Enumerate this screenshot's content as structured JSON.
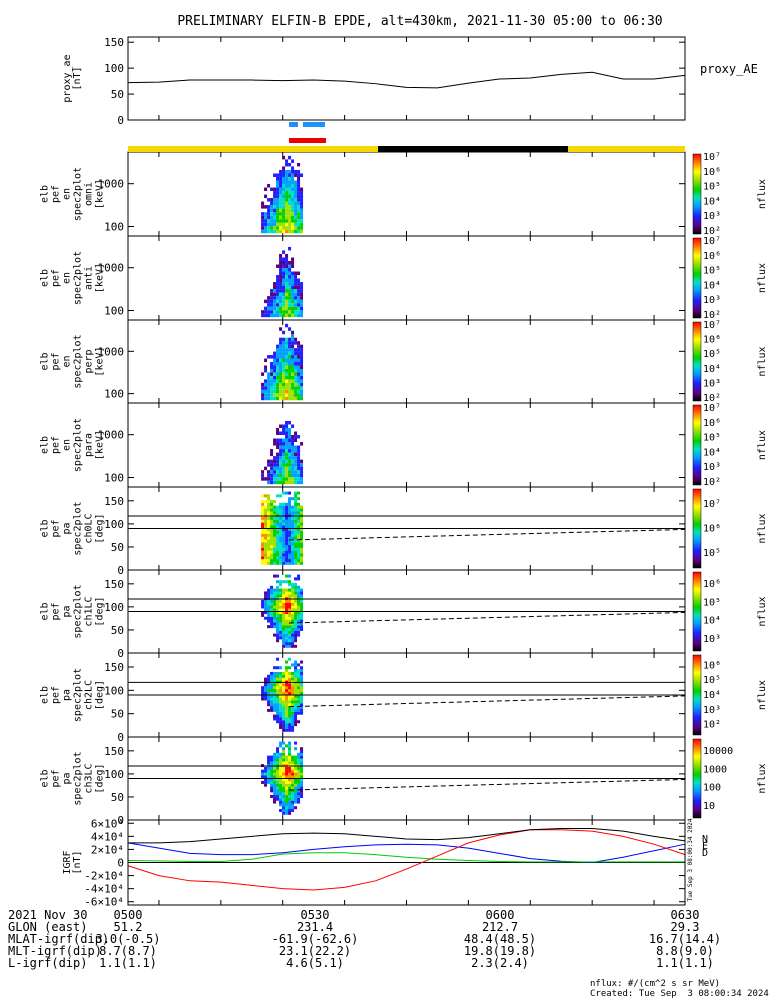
{
  "title": "PRELIMINARY ELFIN-B EPDE, alt=430km, 2021-11-30 05:00 to 06:30",
  "chart_data": [
    {
      "id": "proxy_ae",
      "type": "line",
      "ylabel": [
        "proxy_ae",
        "[nT]"
      ],
      "yticks": [
        "0",
        "50",
        "100",
        "150"
      ],
      "ylim": [
        0,
        160
      ],
      "legend": "proxy_AE",
      "x_minutes": [
        0,
        5,
        10,
        15,
        20,
        25,
        30,
        35,
        40,
        45,
        50,
        55,
        60,
        65,
        70,
        75,
        80,
        85,
        90
      ],
      "values": [
        72,
        73,
        77,
        77,
        77,
        76,
        77,
        75,
        70,
        63,
        62,
        71,
        79,
        81,
        88,
        92,
        79,
        79,
        86
      ]
    },
    {
      "id": "en_omni",
      "type": "heatmap",
      "ylabel": [
        "elb",
        "pef",
        "en",
        "spec2plot",
        "omni",
        "[keV]"
      ],
      "yticks": [
        "100",
        "1000"
      ],
      "log_y": true,
      "colorbar": {
        "ticks": [
          "10²",
          "10³",
          "10⁴",
          "10⁵",
          "10⁶",
          "10⁷"
        ],
        "label": "nflux"
      }
    },
    {
      "id": "en_anti",
      "type": "heatmap",
      "ylabel": [
        "elb",
        "pef",
        "en",
        "spec2plot",
        "anti",
        "[keV]"
      ],
      "yticks": [
        "100",
        "1000"
      ],
      "log_y": true,
      "colorbar": {
        "ticks": [
          "10²",
          "10³",
          "10⁴",
          "10⁵",
          "10⁶",
          "10⁷"
        ],
        "label": "nflux"
      }
    },
    {
      "id": "en_perp",
      "type": "heatmap",
      "ylabel": [
        "elb",
        "pef",
        "en",
        "spec2plot",
        "perp",
        "[keV]"
      ],
      "yticks": [
        "100",
        "1000"
      ],
      "log_y": true,
      "colorbar": {
        "ticks": [
          "10²",
          "10³",
          "10⁴",
          "10⁵",
          "10⁶",
          "10⁷"
        ],
        "label": "nflux"
      }
    },
    {
      "id": "en_para",
      "type": "heatmap",
      "ylabel": [
        "elb",
        "pef",
        "en",
        "spec2plot",
        "para",
        "[keV]"
      ],
      "yticks": [
        "100",
        "1000"
      ],
      "log_y": true,
      "colorbar": {
        "ticks": [
          "10²",
          "10³",
          "10⁴",
          "10⁵",
          "10⁶",
          "10⁷"
        ],
        "label": "nflux"
      }
    },
    {
      "id": "pa_ch0",
      "type": "heatmap",
      "ylabel": [
        "elb",
        "pef",
        "pa",
        "spec2plot",
        "ch0LC",
        "[deg]"
      ],
      "yticks": [
        "0",
        "50",
        "100",
        "150"
      ],
      "ylim": [
        0,
        180
      ],
      "colorbar": {
        "ticks": [
          "10⁵",
          "10⁶",
          "10⁷"
        ],
        "label": "nflux"
      }
    },
    {
      "id": "pa_ch1",
      "type": "heatmap",
      "ylabel": [
        "elb",
        "pef",
        "pa",
        "spec2plot",
        "ch1LC",
        "[deg]"
      ],
      "yticks": [
        "0",
        "50",
        "100",
        "150"
      ],
      "ylim": [
        0,
        180
      ],
      "colorbar": {
        "ticks": [
          "10³",
          "10⁴",
          "10⁵",
          "10⁶"
        ],
        "label": "nflux"
      }
    },
    {
      "id": "pa_ch2",
      "type": "heatmap",
      "ylabel": [
        "elb",
        "pef",
        "pa",
        "spec2plot",
        "ch2LC",
        "[deg]"
      ],
      "yticks": [
        "0",
        "50",
        "100",
        "150"
      ],
      "ylim": [
        0,
        180
      ],
      "colorbar": {
        "ticks": [
          "10²",
          "10³",
          "10⁴",
          "10⁵",
          "10⁶"
        ],
        "label": "nflux"
      }
    },
    {
      "id": "pa_ch3",
      "type": "heatmap",
      "ylabel": [
        "elb",
        "pef",
        "pa",
        "spec2plot",
        "ch3LC",
        "[deg]"
      ],
      "yticks": [
        "0",
        "50",
        "100",
        "150"
      ],
      "ylim": [
        0,
        180
      ],
      "colorbar": {
        "ticks": [
          "10",
          "100",
          "1000",
          "10000"
        ],
        "label": "nflux"
      }
    },
    {
      "id": "igrf",
      "type": "line",
      "ylabel": [
        "IGRF",
        "[nT]"
      ],
      "yticks": [
        "-6×10⁴",
        "-4×10⁴",
        "-2×10⁴",
        "0",
        "2×10⁴",
        "4×10⁴",
        "6×10⁴"
      ],
      "ylim": [
        -65000,
        65000
      ],
      "x_minutes": [
        0,
        5,
        10,
        15,
        20,
        25,
        30,
        35,
        40,
        45,
        50,
        55,
        60,
        65,
        70,
        75,
        80,
        85,
        90
      ],
      "series": [
        {
          "name": "N",
          "color": "#0000ff",
          "values": [
            30000,
            22000,
            14000,
            12000,
            12000,
            15000,
            20000,
            24000,
            27000,
            28000,
            27000,
            22000,
            14000,
            6000,
            2000,
            0,
            8000,
            18000,
            28000
          ]
        },
        {
          "name": "E",
          "color": "#00cc00",
          "values": [
            3000,
            2500,
            1500,
            1500,
            5000,
            13000,
            15000,
            15000,
            12000,
            8000,
            5000,
            3000,
            1500,
            1000,
            1000,
            1000,
            1000,
            1000,
            1000
          ]
        },
        {
          "name": "D",
          "color": "#ff0000",
          "values": [
            -5000,
            -20000,
            -28000,
            -30000,
            -35000,
            -40000,
            -42000,
            -38000,
            -28000,
            -10000,
            10000,
            30000,
            42000,
            50000,
            50000,
            48000,
            40000,
            28000,
            12000
          ]
        },
        {
          "name": "",
          "color": "#000000",
          "values": [
            30000,
            30000,
            32000,
            36000,
            40000,
            44000,
            45000,
            44000,
            40000,
            36000,
            35000,
            38000,
            44000,
            50000,
            52000,
            52000,
            48000,
            40000,
            33000
          ]
        }
      ]
    }
  ],
  "footer": {
    "rows": [
      [
        "2021 Nov 30",
        "0500",
        "0530",
        "0600",
        "0630"
      ],
      [
        "GLON (east)",
        "51.2",
        "231.4",
        "212.7",
        "29.3"
      ],
      [
        "MLAT-igrf(dip)",
        "3.0(-0.5)",
        "-61.9(-62.6)",
        "48.4(48.5)",
        "16.7(14.4)"
      ],
      [
        "MLT-igrf(dip)",
        "8.7(8.7)",
        "23.1(22.2)",
        "19.8(19.8)",
        "8.8(9.0)"
      ],
      [
        "L-igrf(dip)",
        "1.1(1.1)",
        "4.6(5.1)",
        "2.3(2.4)",
        "1.1(1.1)"
      ]
    ],
    "units": "nflux: #/(cm^2 s sr MeV)",
    "created": "Created: Tue Sep  3 08:00:34 2024",
    "side_stamp": "Tue Sep  3 08:00:34 2024"
  }
}
